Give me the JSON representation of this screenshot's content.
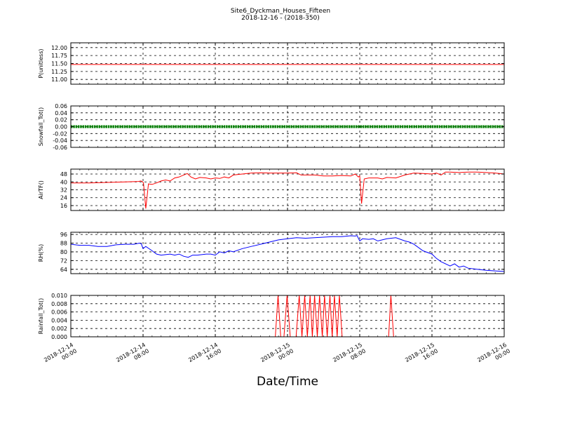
{
  "figure": {
    "title": "Site6_Dyckman_Houses_Fifteen",
    "subtitle": "2018-12-16 - (2018-350)",
    "xlabel": "Date/Time"
  },
  "chart_data": [
    {
      "type": "line",
      "ylabel": "P(unitless)",
      "ylim": [
        10.85,
        12.15
      ],
      "yticks": [
        "12.00",
        "11.75",
        "11.50",
        "11.25",
        "11.00"
      ],
      "ytick_values": [
        12.0,
        11.75,
        11.5,
        11.25,
        11.0
      ],
      "grid": true,
      "series": [
        {
          "color": "#ff0000",
          "style": "line",
          "x": [
            0,
            48
          ],
          "y": [
            11.47,
            11.47
          ]
        }
      ]
    },
    {
      "type": "line",
      "ylabel": "Snowfall_Tot()",
      "ylim": [
        -0.06,
        0.06
      ],
      "yticks": [
        "0.06",
        "0.04",
        "0.02",
        "0.00",
        "-0.02",
        "-0.04",
        "-0.06"
      ],
      "ytick_values": [
        0.06,
        0.04,
        0.02,
        0.0,
        -0.02,
        -0.04,
        -0.06
      ],
      "grid": true,
      "series": [
        {
          "color": "#008000",
          "style": "markers",
          "x": [
            0,
            48
          ],
          "y": [
            0,
            0
          ]
        }
      ]
    },
    {
      "type": "line",
      "ylabel": "AirTF()",
      "ylim": [
        11,
        53
      ],
      "yticks": [
        "48",
        "40",
        "32",
        "24",
        "16"
      ],
      "ytick_values": [
        48,
        40,
        32,
        24,
        16
      ],
      "grid": true,
      "series": [
        {
          "color": "#ff0000",
          "style": "line",
          "x": [
            0,
            2,
            4,
            6,
            7.5,
            7.75,
            7.9,
            8.05,
            8.3,
            8.6,
            9,
            9.5,
            10,
            10.5,
            11,
            11.5,
            12,
            12.5,
            12.9,
            13.3,
            13.8,
            14.3,
            15,
            15.5,
            16,
            16.5,
            17,
            17.5,
            18,
            19,
            20,
            21,
            22,
            23,
            24,
            25,
            25.5,
            26,
            27,
            28,
            29,
            30,
            31,
            31.5,
            31.85,
            32.0,
            32.2,
            32.5,
            33,
            34,
            34.5,
            35,
            36,
            37,
            37.5,
            38,
            39,
            40,
            40.5,
            41,
            41.5,
            42,
            43,
            44,
            45,
            46,
            47,
            48
          ],
          "y": [
            39,
            39,
            39.5,
            40,
            40.5,
            41,
            40.5,
            39,
            13,
            38,
            37.5,
            39,
            41,
            42,
            41,
            44,
            45,
            47,
            48.5,
            45,
            43,
            44.5,
            44,
            43,
            44,
            43.5,
            45,
            44,
            47,
            48,
            49,
            49.3,
            49,
            49,
            49,
            49.2,
            47,
            47,
            47,
            46,
            46,
            46.5,
            46,
            48,
            45,
            46,
            18,
            43,
            44,
            44,
            43,
            44.5,
            44,
            47,
            48,
            49,
            48.5,
            48,
            49,
            47,
            50,
            50,
            49.5,
            50,
            50,
            49.5,
            49,
            48
          ]
        }
      ]
    },
    {
      "type": "line",
      "ylabel": "RH(%)",
      "ylim": [
        60,
        98
      ],
      "yticks": [
        "96",
        "88",
        "80",
        "72",
        "64"
      ],
      "ytick_values": [
        96,
        88,
        80,
        72,
        64
      ],
      "grid": true,
      "series": [
        {
          "color": "#0000ff",
          "style": "line",
          "x": [
            0,
            1,
            2,
            3,
            4,
            5,
            6,
            7,
            7.6,
            7.8,
            8.0,
            8.3,
            9,
            9.5,
            10,
            11,
            11.5,
            12,
            12.5,
            13,
            13.5,
            14,
            15,
            15.5,
            16,
            16.5,
            17,
            17.5,
            18,
            19,
            20,
            21,
            22,
            23,
            24,
            25,
            26,
            27,
            28,
            29,
            30,
            31,
            31.5,
            31.7,
            32,
            32.3,
            33,
            33.5,
            34,
            35,
            36,
            37,
            37.5,
            38,
            39,
            40,
            40.5,
            41,
            42,
            42.5,
            43,
            43.5,
            44,
            45,
            46,
            47,
            48
          ],
          "y": [
            87,
            86,
            86,
            85,
            85,
            86.5,
            87,
            87,
            88,
            87.5,
            83,
            85,
            81,
            78,
            77,
            78,
            77,
            78,
            76,
            75,
            77,
            77,
            78,
            78,
            77,
            80,
            79,
            81,
            80,
            83,
            85,
            87,
            89,
            91,
            92,
            93,
            92.5,
            93,
            93.5,
            94,
            94,
            94.8,
            94.5,
            95,
            90,
            92,
            91.5,
            92,
            90,
            92,
            93,
            90,
            89,
            87,
            81,
            78,
            74,
            71,
            67,
            69,
            66,
            67,
            65,
            64,
            63,
            62.5,
            62
          ]
        }
      ]
    },
    {
      "type": "line",
      "ylabel": "Rainfall_Tot()",
      "ylim": [
        0,
        0.01
      ],
      "yticks": [
        "0.010",
        "0.008",
        "0.006",
        "0.004",
        "0.002",
        "0.000"
      ],
      "ytick_values": [
        0.01,
        0.008,
        0.006,
        0.004,
        0.002,
        0.0
      ],
      "grid": true,
      "series": [
        {
          "color": "#ff0000",
          "style": "line",
          "x": [
            0,
            22.65,
            22.95,
            23.25,
            23.6,
            23.95,
            24.3,
            24.65,
            24.95,
            25.3,
            25.6,
            25.9,
            26.2,
            26.5,
            26.75,
            27.0,
            27.3,
            27.55,
            27.85,
            28.1,
            28.4,
            28.7,
            28.95,
            29.2,
            29.5,
            29.75,
            30.05,
            30.3,
            35.2,
            35.45,
            35.75,
            36.0,
            48
          ],
          "y": [
            0,
            0,
            0.01,
            0,
            0,
            0.01,
            0,
            0,
            0,
            0.01,
            0,
            0.01,
            0,
            0.01,
            0,
            0.01,
            0,
            0.01,
            0,
            0.01,
            0,
            0.01,
            0,
            0.01,
            0,
            0.01,
            0,
            0,
            0,
            0.01,
            0,
            0,
            0
          ]
        }
      ]
    }
  ],
  "xaxis": {
    "unit": "hours since 2018-12-14 00:00",
    "range": [
      0,
      48
    ],
    "ticks": [
      {
        "value": 0,
        "line1": "2018-12-14",
        "line2": "00:00"
      },
      {
        "value": 8,
        "line1": "2018-12-14",
        "line2": "08:00"
      },
      {
        "value": 16,
        "line1": "2018-12-14",
        "line2": "16:00"
      },
      {
        "value": 24,
        "line1": "2018-12-15",
        "line2": "00:00"
      },
      {
        "value": 32,
        "line1": "2018-12-15",
        "line2": "08:00"
      },
      {
        "value": 40,
        "line1": "2018-12-15",
        "line2": "16:00"
      },
      {
        "value": 48,
        "line1": "2018-12-16",
        "line2": "00:00"
      }
    ]
  }
}
